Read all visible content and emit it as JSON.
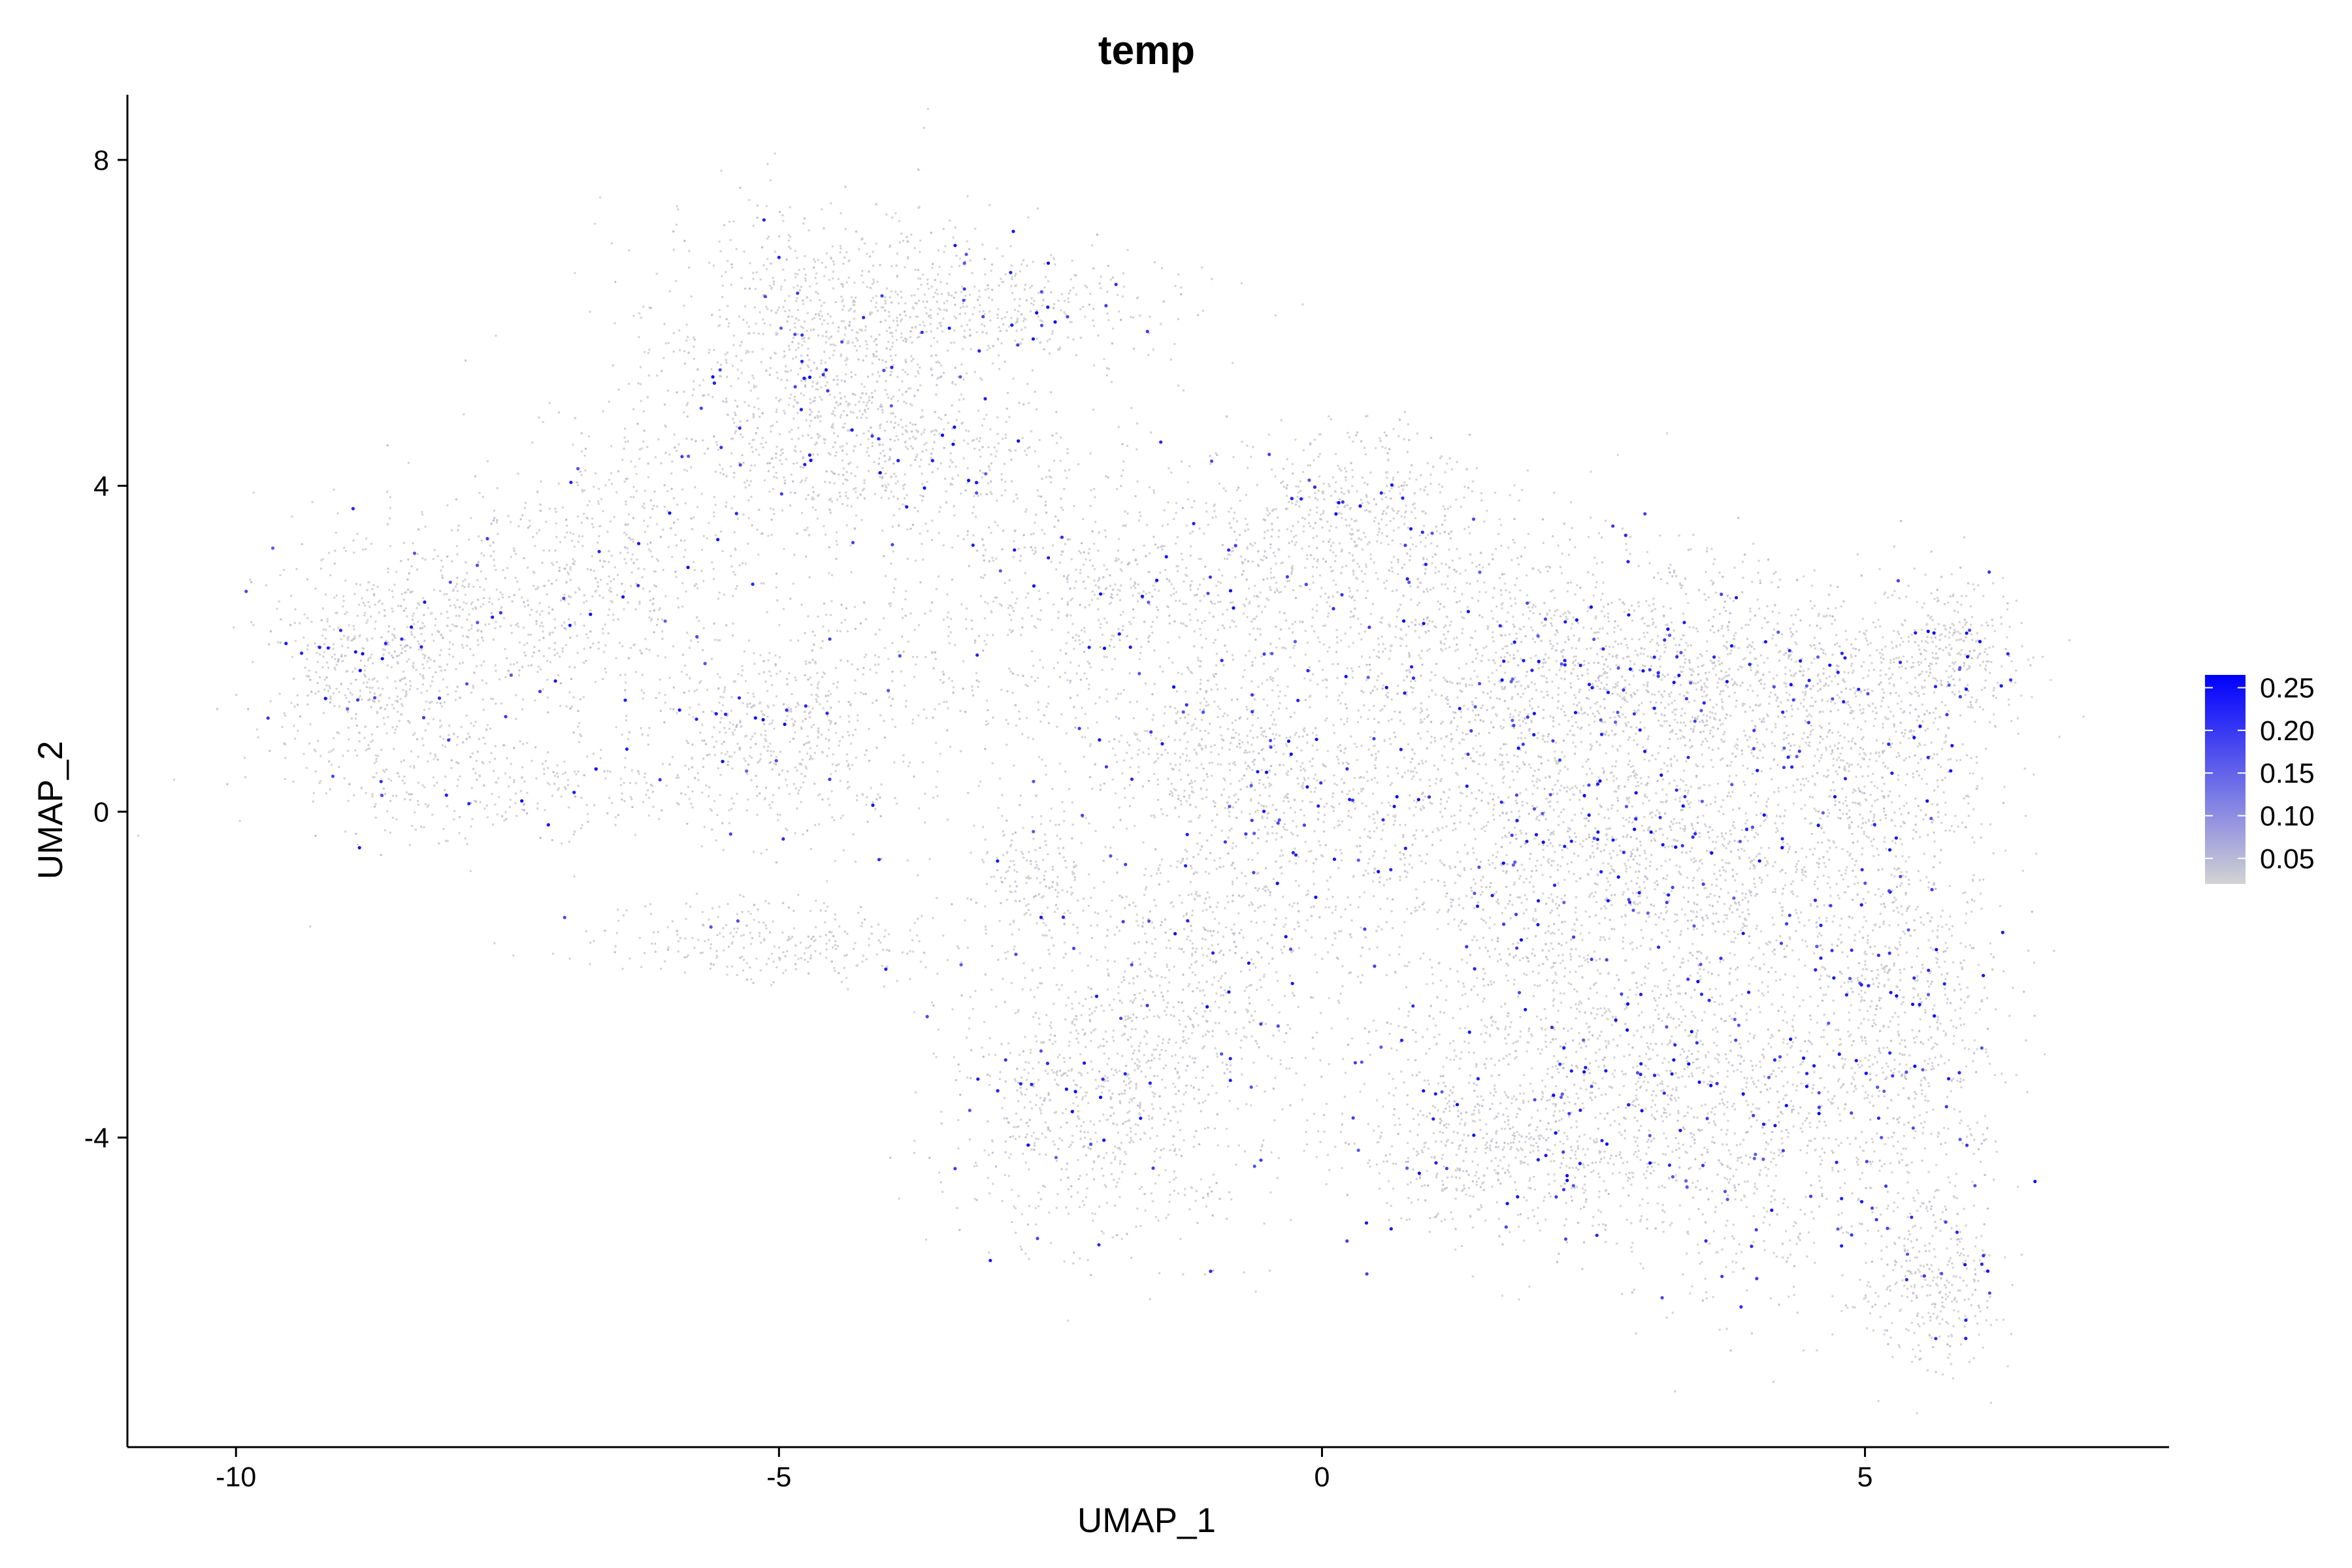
{
  "chart_data": {
    "type": "scatter",
    "title": "temp",
    "xlabel": "UMAP_1",
    "ylabel": "UMAP_2",
    "xlim": [
      -11,
      7.8
    ],
    "ylim": [
      -7.8,
      8.8
    ],
    "x_ticks": [
      -10,
      -5,
      0,
      5
    ],
    "y_ticks": [
      -4,
      0,
      4,
      8
    ],
    "x_tick_labels": [
      "-10",
      "-5",
      "0",
      "5"
    ],
    "y_tick_labels": [
      "-4",
      "0",
      "4",
      "8"
    ],
    "grid": false,
    "legend": {
      "placement": "right",
      "type": "colorbar",
      "min": 0.02,
      "max": 0.265,
      "ticks": [
        0.05,
        0.1,
        0.15,
        0.2,
        0.25
      ],
      "tick_labels": [
        "0.05",
        "0.10",
        "0.15",
        "0.20",
        "0.25"
      ],
      "low_color": "#d3d3d3",
      "high_color": "#0000ff"
    },
    "regions": [
      {
        "center": [
          -4.6,
          5.7
        ],
        "spread": [
          0.8,
          0.9
        ],
        "weight": 9,
        "hi_rate": 0.04
      },
      {
        "center": [
          -3.0,
          6.2
        ],
        "spread": [
          0.9,
          0.4
        ],
        "weight": 4,
        "hi_rate": 0.03
      },
      {
        "center": [
          -4.2,
          4.4
        ],
        "spread": [
          1.0,
          0.5
        ],
        "weight": 6,
        "hi_rate": 0.04
      },
      {
        "center": [
          -8.7,
          1.8
        ],
        "spread": [
          0.55,
          0.75
        ],
        "weight": 6,
        "hi_rate": 0.05
      },
      {
        "center": [
          -7.4,
          2.3
        ],
        "spread": [
          0.9,
          0.7
        ],
        "weight": 5,
        "hi_rate": 0.03
      },
      {
        "center": [
          -6.5,
          3.4
        ],
        "spread": [
          0.7,
          0.6
        ],
        "weight": 3,
        "hi_rate": 0.02
      },
      {
        "center": [
          -7.5,
          0.3
        ],
        "spread": [
          1.0,
          0.35
        ],
        "weight": 3,
        "hi_rate": 0.02
      },
      {
        "center": [
          -5.0,
          1.0
        ],
        "spread": [
          0.6,
          0.7
        ],
        "weight": 6,
        "hi_rate": 0.03
      },
      {
        "center": [
          -5.0,
          -1.6
        ],
        "spread": [
          0.9,
          0.25
        ],
        "weight": 3,
        "hi_rate": 0.02
      },
      {
        "center": [
          -2.7,
          -0.8
        ],
        "spread": [
          0.3,
          0.5
        ],
        "weight": 2,
        "hi_rate": 0.02
      },
      {
        "center": [
          -2.5,
          2.2
        ],
        "spread": [
          1.2,
          1.0
        ],
        "weight": 6,
        "hi_rate": 0.04
      },
      {
        "center": [
          -1.0,
          3.0
        ],
        "spread": [
          1.2,
          0.6
        ],
        "weight": 5,
        "hi_rate": 0.04
      },
      {
        "center": [
          0.3,
          3.7
        ],
        "spread": [
          0.6,
          0.5
        ],
        "weight": 4,
        "hi_rate": 0.04
      },
      {
        "center": [
          -0.8,
          0.6
        ],
        "spread": [
          0.7,
          0.6
        ],
        "weight": 5,
        "hi_rate": 0.04
      },
      {
        "center": [
          -0.9,
          -1.2
        ],
        "spread": [
          0.6,
          0.5
        ],
        "weight": 3,
        "hi_rate": 0.05
      },
      {
        "center": [
          -2.1,
          -3.6
        ],
        "spread": [
          0.7,
          0.9
        ],
        "weight": 8,
        "hi_rate": 0.03
      },
      {
        "center": [
          -1.5,
          -2.5
        ],
        "spread": [
          0.6,
          0.6
        ],
        "weight": 3,
        "hi_rate": 0.04
      },
      {
        "center": [
          1.5,
          2.0
        ],
        "spread": [
          1.2,
          0.8
        ],
        "weight": 9,
        "hi_rate": 0.06
      },
      {
        "center": [
          3.2,
          1.6
        ],
        "spread": [
          1.0,
          0.7
        ],
        "weight": 7,
        "hi_rate": 0.06
      },
      {
        "center": [
          1.5,
          -0.2
        ],
        "spread": [
          1.3,
          0.9
        ],
        "weight": 11,
        "hi_rate": 0.07
      },
      {
        "center": [
          3.5,
          -0.6
        ],
        "spread": [
          1.0,
          0.9
        ],
        "weight": 9,
        "hi_rate": 0.07
      },
      {
        "center": [
          2.0,
          -3.0
        ],
        "spread": [
          1.0,
          1.0
        ],
        "weight": 9,
        "hi_rate": 0.07
      },
      {
        "center": [
          3.8,
          -3.6
        ],
        "spread": [
          0.9,
          1.3
        ],
        "weight": 11,
        "hi_rate": 0.08
      },
      {
        "center": [
          1.5,
          -4.2
        ],
        "spread": [
          0.8,
          0.4
        ],
        "weight": 4,
        "hi_rate": 0.06
      },
      {
        "center": [
          5.4,
          -2.5
        ],
        "spread": [
          0.45,
          1.3
        ],
        "weight": 7,
        "hi_rate": 0.07
      },
      {
        "center": [
          5.6,
          -5.8
        ],
        "spread": [
          0.3,
          0.5
        ],
        "weight": 3,
        "hi_rate": 0.07
      },
      {
        "center": [
          5.8,
          2.0
        ],
        "spread": [
          0.35,
          0.5
        ],
        "weight": 3,
        "hi_rate": 0.06
      },
      {
        "center": [
          5.1,
          0.6
        ],
        "spread": [
          0.5,
          0.7
        ],
        "weight": 4,
        "hi_rate": 0.06
      },
      {
        "center": [
          4.2,
          1.8
        ],
        "spread": [
          0.9,
          0.5
        ],
        "weight": 4,
        "hi_rate": 0.06
      }
    ]
  }
}
